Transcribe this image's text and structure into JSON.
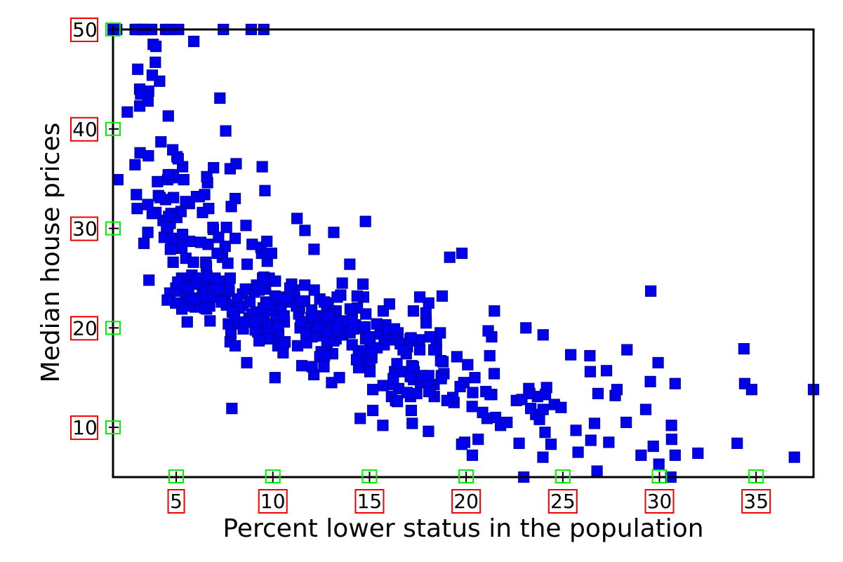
{
  "chart_data": {
    "type": "scatter",
    "title": "",
    "xlabel": "Percent lower status in the population",
    "ylabel": "Median house prices",
    "xlim": [
      1.73,
      37.97
    ],
    "ylim": [
      5.0,
      50.0
    ],
    "xticks": [
      5,
      10,
      15,
      20,
      25,
      30,
      35
    ],
    "yticks": [
      10,
      20,
      30,
      40,
      50
    ],
    "xtick_labels": [
      "5",
      "10",
      "15",
      "20",
      "25",
      "30",
      "35"
    ],
    "ytick_labels": [
      "10",
      "20",
      "30",
      "40",
      "50"
    ],
    "grid": false,
    "legend": null,
    "colors": {
      "marker": "#0000ee",
      "marker_edge": "#0000aa",
      "ytick_box": "#00ee00",
      "label_box": "#ee0000"
    },
    "series": [
      {
        "marker": "circle+square",
        "x": [
          4.98,
          9.14,
          4.03,
          2.94,
          5.33,
          5.21,
          12.43,
          19.15,
          29.93,
          17.1,
          20.45,
          13.27,
          15.71,
          8.26,
          10.26,
          8.47,
          6.58,
          14.67,
          11.69,
          11.28,
          21.02,
          13.83,
          18.72,
          19.88,
          16.3,
          16.51,
          14.81,
          17.28,
          12.8,
          11.98,
          22.6,
          13.04,
          27.71,
          18.35,
          20.34,
          9.68,
          11.41,
          8.77,
          10.13,
          4.32,
          1.98,
          4.84,
          5.81,
          7.44,
          9.55,
          10.21,
          14.15,
          18.8,
          30.81,
          16.2,
          13.45,
          9.43,
          5.28,
          8.43,
          14.8,
          4.81,
          5.77,
          3.95,
          6.86,
          9.22,
          13.15,
          14.44,
          6.73,
          9.5,
          8.05,
          4.67,
          10.24,
          8.1,
          13.09,
          8.79,
          6.72,
          9.88,
          5.52,
          7.54,
          6.78,
          8.94,
          11.97,
          10.27,
          12.34,
          9.1,
          5.29,
          7.22,
          6.72,
          7.51,
          9.62,
          6.53,
          12.86,
          8.44,
          5.5,
          5.7,
          8.81,
          8.2,
          8.16,
          6.21,
          10.59,
          6.65,
          11.34,
          4.21,
          3.57,
          6.19,
          9.42,
          7.67,
          10.63,
          13.44,
          12.33,
          16.47,
          18.66,
          14.09,
          12.27,
          15.55,
          13.0,
          10.16,
          16.21,
          17.09,
          10.45,
          15.76,
          12.04,
          10.3,
          15.37,
          13.61,
          14.37,
          14.27,
          17.93,
          25.41,
          17.58,
          14.81,
          27.26,
          17.19,
          15.39,
          18.34,
          12.6,
          12.26,
          11.12,
          15.03,
          17.31,
          16.96,
          16.9,
          14.59,
          21.32,
          18.46,
          24.16,
          34.41,
          26.82,
          26.42,
          29.29,
          27.8,
          16.65,
          29.53,
          28.32,
          21.45,
          14.1,
          13.28,
          12.12,
          15.79,
          15.12,
          15.02,
          16.14,
          4.59,
          6.43,
          7.39,
          5.5,
          1.73,
          1.92,
          3.32,
          11.64,
          9.81,
          3.7,
          12.14,
          11.1,
          11.32,
          14.43,
          12.03,
          14.69,
          9.04,
          9.64,
          5.33,
          10.11,
          6.29,
          6.92,
          5.04,
          7.56,
          9.45,
          4.82,
          5.68,
          13.98,
          13.15,
          4.45,
          6.68,
          4.56,
          5.39,
          5.1,
          4.69,
          2.87,
          5.03,
          4.38,
          2.97,
          4.08,
          8.61,
          6.62,
          4.56,
          4.45,
          7.43,
          3.11,
          3.81,
          2.88,
          10.87,
          10.97,
          18.06,
          14.66,
          23.09,
          17.27,
          23.98,
          16.03,
          9.38,
          29.55,
          9.47,
          13.51,
          9.69,
          17.92,
          10.5,
          9.71,
          21.46,
          9.93,
          7.6,
          4.14,
          4.63,
          3.13,
          6.36,
          3.92,
          3.76,
          11.65,
          5.25,
          2.47,
          3.95,
          8.05,
          10.88,
          9.54,
          4.73,
          6.36,
          7.37,
          11.38,
          12.4,
          11.22,
          5.19,
          12.5,
          18.46,
          9.16,
          10.15,
          9.52,
          6.56,
          5.9,
          3.59,
          3.53,
          3.54,
          6.57,
          9.25,
          3.11,
          5.12,
          7.79,
          6.9,
          9.59,
          7.26,
          5.91,
          11.25,
          8.1,
          10.45,
          14.79,
          7.44,
          3.16,
          13.65,
          13.0,
          6.59,
          7.73,
          6.58,
          3.53,
          2.98,
          6.05,
          4.16,
          7.19,
          4.85,
          3.76,
          4.59,
          3.01,
          3.16,
          7.85,
          8.23,
          12.93,
          7.14,
          7.6,
          9.51,
          3.33,
          3.56,
          4.7,
          8.58,
          10.4,
          6.27,
          7.39,
          15.84,
          4.97,
          4.74,
          6.07,
          9.5,
          8.67,
          4.86,
          6.93,
          8.93,
          6.47,
          7.53,
          4.54,
          9.97,
          12.64,
          5.98,
          11.72,
          7.9,
          9.28,
          11.5,
          18.33,
          15.94,
          10.36,
          12.73,
          7.2,
          6.87,
          7.7,
          11.74,
          6.12,
          5.08,
          6.15,
          12.79,
          9.97,
          7.34,
          9.09,
          12.43,
          7.83,
          5.68,
          6.75,
          8.01,
          9.8,
          10.56,
          8.51,
          9.74,
          9.29,
          5.49,
          8.65,
          7.18,
          4.61,
          10.53,
          12.67,
          6.36,
          5.99,
          5.89,
          5.98,
          5.49,
          7.79,
          4.5,
          8.05,
          5.57,
          17.6,
          13.27,
          11.48,
          12.67,
          7.79,
          14.19,
          10.19,
          14.64,
          5.29,
          7.12,
          14.0,
          13.33,
          3.26,
          3.73,
          2.96,
          9.53,
          8.88,
          34.77,
          37.97,
          13.44,
          23.24,
          21.24,
          23.69,
          21.78,
          17.21,
          21.08,
          23.6,
          24.56,
          30.63,
          30.81,
          28.28,
          31.99,
          30.62,
          20.85,
          17.11,
          18.76,
          25.68,
          15.17,
          16.35,
          17.12,
          19.37,
          19.92,
          30.59,
          29.97,
          26.77,
          20.32,
          20.31,
          19.77,
          27.38,
          22.98,
          23.34,
          12.13,
          26.4,
          19.78,
          10.11,
          21.22,
          34.37,
          20.08,
          36.98,
          29.05,
          25.79,
          26.64,
          20.62,
          22.74,
          15.02,
          15.7,
          14.1,
          23.29,
          17.16,
          24.39,
          15.69,
          14.52,
          21.52,
          24.08,
          17.64,
          19.69,
          12.03,
          16.22,
          15.17,
          23.27,
          18.05,
          26.45,
          34.02,
          22.88,
          22.11,
          19.52,
          16.59,
          18.85,
          23.79,
          23.98,
          17.79,
          16.44,
          18.13,
          19.31,
          17.44,
          17.73,
          17.27,
          16.74,
          18.71,
          18.13,
          19.01,
          16.94,
          16.23,
          14.7,
          16.42,
          14.65,
          13.99,
          10.29,
          13.22,
          14.13,
          17.15,
          21.32,
          18.13,
          14.76,
          16.29,
          12.87,
          14.36,
          11.66,
          18.14,
          24.1,
          18.68,
          24.91,
          18.03,
          13.11,
          10.74,
          7.74,
          7.01,
          10.42,
          13.34,
          10.58,
          14.98,
          11.45,
          18.06,
          23.97,
          29.68,
          18.07,
          13.35,
          12.01,
          13.59,
          17.6,
          21.14,
          14.1,
          12.92,
          15.1,
          14.33,
          9.67,
          9.08,
          5.64,
          6.48,
          7.88
        ],
        "y": [
          24.0,
          21.6,
          34.7,
          33.4,
          36.2,
          28.7,
          22.9,
          27.1,
          16.5,
          18.9,
          15.0,
          18.9,
          21.7,
          20.4,
          18.2,
          19.9,
          23.1,
          17.5,
          20.2,
          18.2,
          13.6,
          19.6,
          15.2,
          14.5,
          15.6,
          13.9,
          16.6,
          14.8,
          18.4,
          21.0,
          12.7,
          14.5,
          13.2,
          13.1,
          13.5,
          18.9,
          20.0,
          21.0,
          24.7,
          30.8,
          34.9,
          26.6,
          25.3,
          24.7,
          21.2,
          19.3,
          20.0,
          16.6,
          14.4,
          19.4,
          19.7,
          20.5,
          25.0,
          23.4,
          18.9,
          35.4,
          24.7,
          31.6,
          23.3,
          19.6,
          18.7,
          16.0,
          22.2,
          25.0,
          33.0,
          23.5,
          19.4,
          22.0,
          17.4,
          20.9,
          24.2,
          21.7,
          22.8,
          23.4,
          24.1,
          21.4,
          20.0,
          20.8,
          21.2,
          20.3,
          28.0,
          23.9,
          24.8,
          22.9,
          23.9,
          26.6,
          22.5,
          22.2,
          23.6,
          28.7,
          22.6,
          22.0,
          22.9,
          25.0,
          20.6,
          28.4,
          21.4,
          38.7,
          43.8,
          33.2,
          27.5,
          26.5,
          18.6,
          19.3,
          20.1,
          19.5,
          19.5,
          20.4,
          19.8,
          19.4,
          21.7,
          22.8,
          18.8,
          18.7,
          18.5,
          18.3,
          21.2,
          19.2,
          20.4,
          19.3,
          22.0,
          20.3,
          20.5,
          17.3,
          18.8,
          21.4,
          15.7,
          16.2,
          18.0,
          14.3,
          19.2,
          19.6,
          23.0,
          18.4,
          15.6,
          18.1,
          17.4,
          17.1,
          13.3,
          17.8,
          14.0,
          14.4,
          13.4,
          15.6,
          11.8,
          13.8,
          15.6,
          14.6,
          17.8,
          15.4,
          21.5,
          19.6,
          15.3,
          19.4,
          17.0,
          15.6,
          13.1,
          41.3,
          24.3,
          23.3,
          27.0,
          50.0,
          50.0,
          50.0,
          22.7,
          25.0,
          50.0,
          23.8,
          23.8,
          22.3,
          17.4,
          19.1,
          23.1,
          23.6,
          22.6,
          29.4,
          23.2,
          24.6,
          29.9,
          37.2,
          39.8,
          36.2,
          37.9,
          32.5,
          26.4,
          29.6,
          50.0,
          32.0,
          29.8,
          34.9,
          37.0,
          30.5,
          36.4,
          31.1,
          29.1,
          50.0,
          33.3,
          30.3,
          34.6,
          34.9,
          32.9,
          24.1,
          42.3,
          48.5,
          50.0,
          22.6,
          24.4,
          22.5,
          24.4,
          20.0,
          21.7,
          19.3,
          22.4,
          28.1,
          23.7,
          25.0,
          23.3,
          28.7,
          21.5,
          23.0,
          26.7,
          21.7,
          27.5,
          30.1,
          44.8,
          50.0,
          37.6,
          31.6,
          46.7,
          31.5,
          24.3,
          31.7,
          41.7,
          48.3,
          29.0,
          24.0,
          25.1,
          31.5,
          23.7,
          23.3,
          22.0,
          20.1,
          22.2,
          23.7,
          17.6,
          18.5,
          24.3,
          20.5,
          24.5,
          26.2,
          24.4,
          24.8,
          29.6,
          42.8,
          21.9,
          20.9,
          44.0,
          50.0,
          36.0,
          30.1,
          33.8,
          43.1,
          48.8,
          31.0,
          36.5,
          22.8,
          30.7,
          50.0,
          43.5,
          20.7,
          21.1,
          25.2,
          24.4,
          35.2,
          32.4,
          32.0,
          33.2,
          33.1,
          29.1,
          35.1,
          45.4,
          35.4,
          46.0,
          50.0,
          32.2,
          22.0,
          20.1,
          23.2,
          22.3,
          24.8,
          28.5,
          37.3,
          27.9,
          23.9,
          21.7,
          28.6,
          27.1,
          20.3,
          22.5,
          29.0,
          24.8,
          22.0,
          26.4,
          33.1,
          36.1,
          28.4,
          33.4,
          28.2,
          22.8,
          20.3,
          16.1,
          22.1,
          19.4,
          21.6,
          23.8,
          16.2,
          17.8,
          19.8,
          23.1,
          21.0,
          23.8,
          23.1,
          20.4,
          18.5,
          25.0,
          24.6,
          23.0,
          22.2,
          19.3,
          22.6,
          19.8,
          17.1,
          19.4,
          22.2,
          20.7,
          21.1,
          19.5,
          18.5,
          20.6,
          19.0,
          18.7,
          32.7,
          16.5,
          23.9,
          31.2,
          17.5,
          17.2,
          23.1,
          24.5,
          26.6,
          22.9,
          24.1,
          18.6,
          30.1,
          18.2,
          20.6,
          17.8,
          21.7,
          22.7,
          22.6,
          25.0,
          19.9,
          20.8,
          16.8,
          21.9,
          27.5,
          21.9,
          23.1,
          50.0,
          50.0,
          50.0,
          50.0,
          50.0,
          13.8,
          13.8,
          15.0,
          13.9,
          13.3,
          13.1,
          10.2,
          10.4,
          10.9,
          11.3,
          12.3,
          8.8,
          7.2,
          10.5,
          7.4,
          10.2,
          11.5,
          15.1,
          23.2,
          9.7,
          13.8,
          12.7,
          13.1,
          12.5,
          8.5,
          5.0,
          6.3,
          5.6,
          7.2,
          12.1,
          8.3,
          8.5,
          5.0,
          11.9,
          27.9,
          17.2,
          27.5,
          15.0,
          17.2,
          17.9,
          16.3,
          7.0,
          7.2,
          7.5,
          10.4,
          8.8,
          8.4,
          16.7,
          14.2,
          20.8,
          13.4,
          11.7,
          8.3,
          10.2,
          10.9,
          11.0,
          9.5,
          14.5,
          14.1,
          16.1,
          14.3,
          11.7,
          13.4,
          9.6,
          8.7,
          8.4,
          12.8,
          10.5,
          17.1,
          18.4,
          15.4,
          10.8,
          11.8,
          14.9,
          12.6,
          14.1,
          13.0,
          13.4,
          15.2,
          16.1,
          17.8,
          14.9,
          14.1,
          12.7,
          13.5,
          14.9,
          20.0,
          16.4,
          17.7,
          19.5,
          20.2,
          21.4,
          19.9,
          19.0,
          19.1,
          19.1,
          20.1,
          19.9,
          19.6,
          23.2,
          29.8,
          13.8,
          13.3,
          16.7,
          12.0,
          14.6,
          21.4,
          23.0,
          23.7,
          25.0,
          21.8,
          20.6,
          21.2,
          19.1,
          20.6,
          15.2,
          7.0,
          8.1,
          13.6,
          20.1,
          21.8,
          24.5,
          23.1,
          19.7,
          18.3,
          21.2,
          17.5,
          16.8,
          22.4,
          20.6,
          23.9,
          22.0,
          11.9
        ]
      }
    ]
  }
}
